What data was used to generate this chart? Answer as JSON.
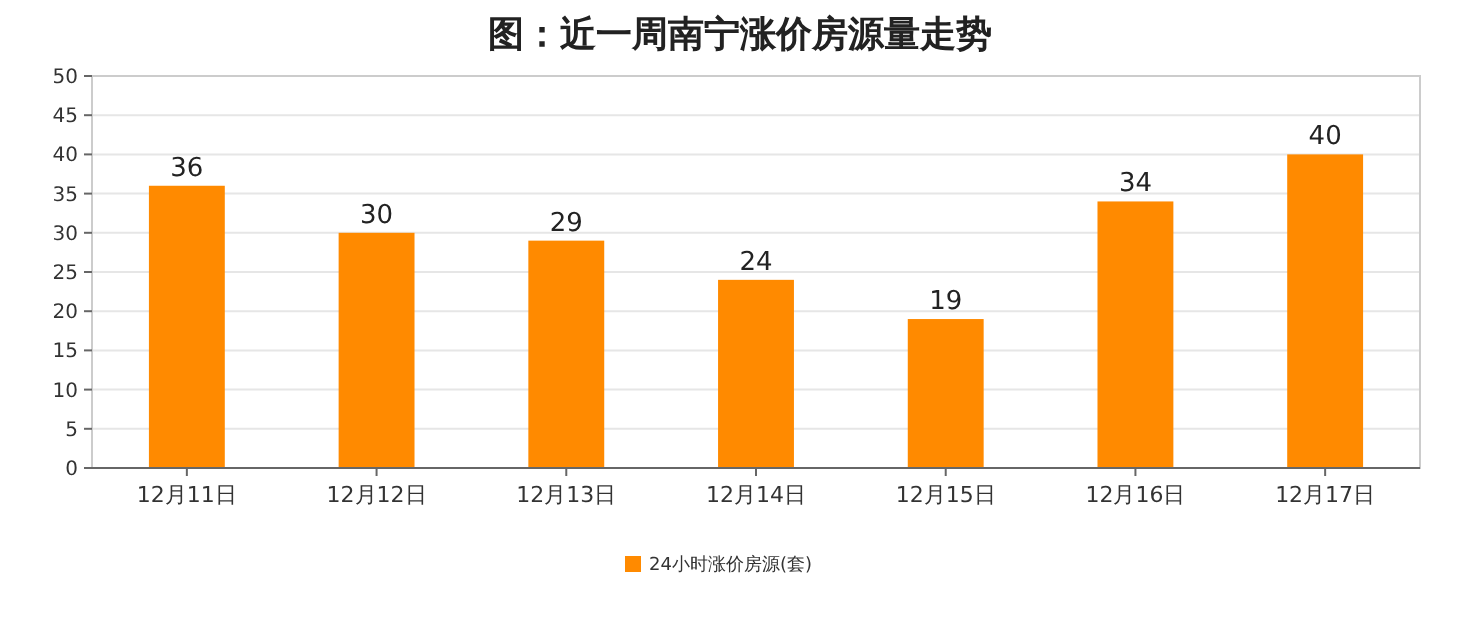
{
  "chart_data": {
    "type": "bar",
    "title": "图：近一周南宁涨价房源量走势",
    "categories": [
      "12月11日",
      "12月12日",
      "12月13日",
      "12月14日",
      "12月15日",
      "12月16日",
      "12月17日"
    ],
    "series": [
      {
        "name": "24小时涨价房源(套)",
        "color": "#ff8a00",
        "values": [
          36,
          30,
          29,
          24,
          19,
          34,
          40
        ]
      }
    ],
    "ylim": [
      0,
      50
    ],
    "yticks": [
      0,
      5,
      10,
      15,
      20,
      25,
      30,
      35,
      40,
      45,
      50
    ],
    "grid": "y",
    "legend": "bottom",
    "data_labels": true
  }
}
